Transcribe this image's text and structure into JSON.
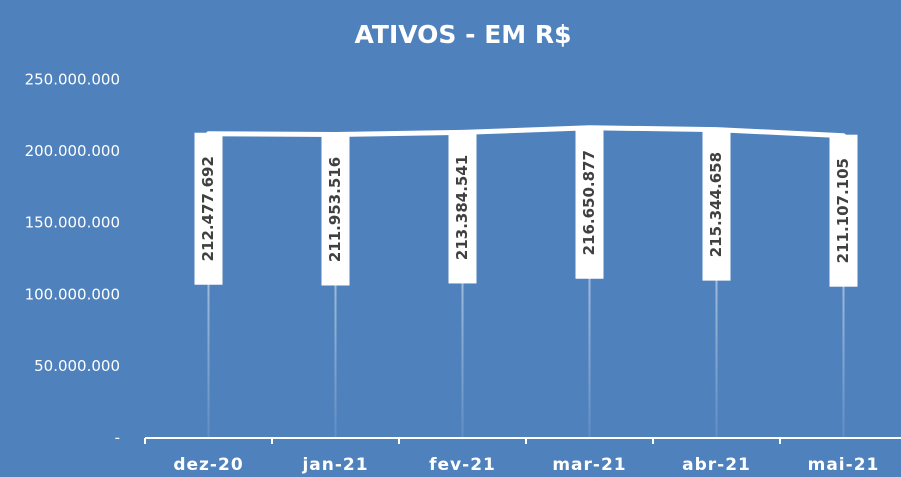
{
  "chart_data": {
    "type": "line",
    "title": "ATIVOS - EM R$",
    "categories": [
      "dez-20",
      "jan-21",
      "fev-21",
      "mar-21",
      "abr-21",
      "mai-21"
    ],
    "values": [
      212477692,
      211953516,
      213384541,
      216650877,
      215344658,
      211107105
    ],
    "value_labels": [
      "212.477.692",
      "211.953.516",
      "213.384.541",
      "216.650.877",
      "215.344.658",
      "211.107.105"
    ],
    "color": "#ffffff",
    "ylim": [
      0,
      250000000
    ],
    "yticks": [
      {
        "value": 0,
        "label": "-"
      },
      {
        "value": 50000000,
        "label": "50.000.000"
      },
      {
        "value": 100000000,
        "label": "100.000.000"
      },
      {
        "value": 150000000,
        "label": "150.000.000"
      },
      {
        "value": 200000000,
        "label": "200.000.000"
      },
      {
        "value": 250000000,
        "label": "250.000.000"
      }
    ],
    "grid": false
  }
}
